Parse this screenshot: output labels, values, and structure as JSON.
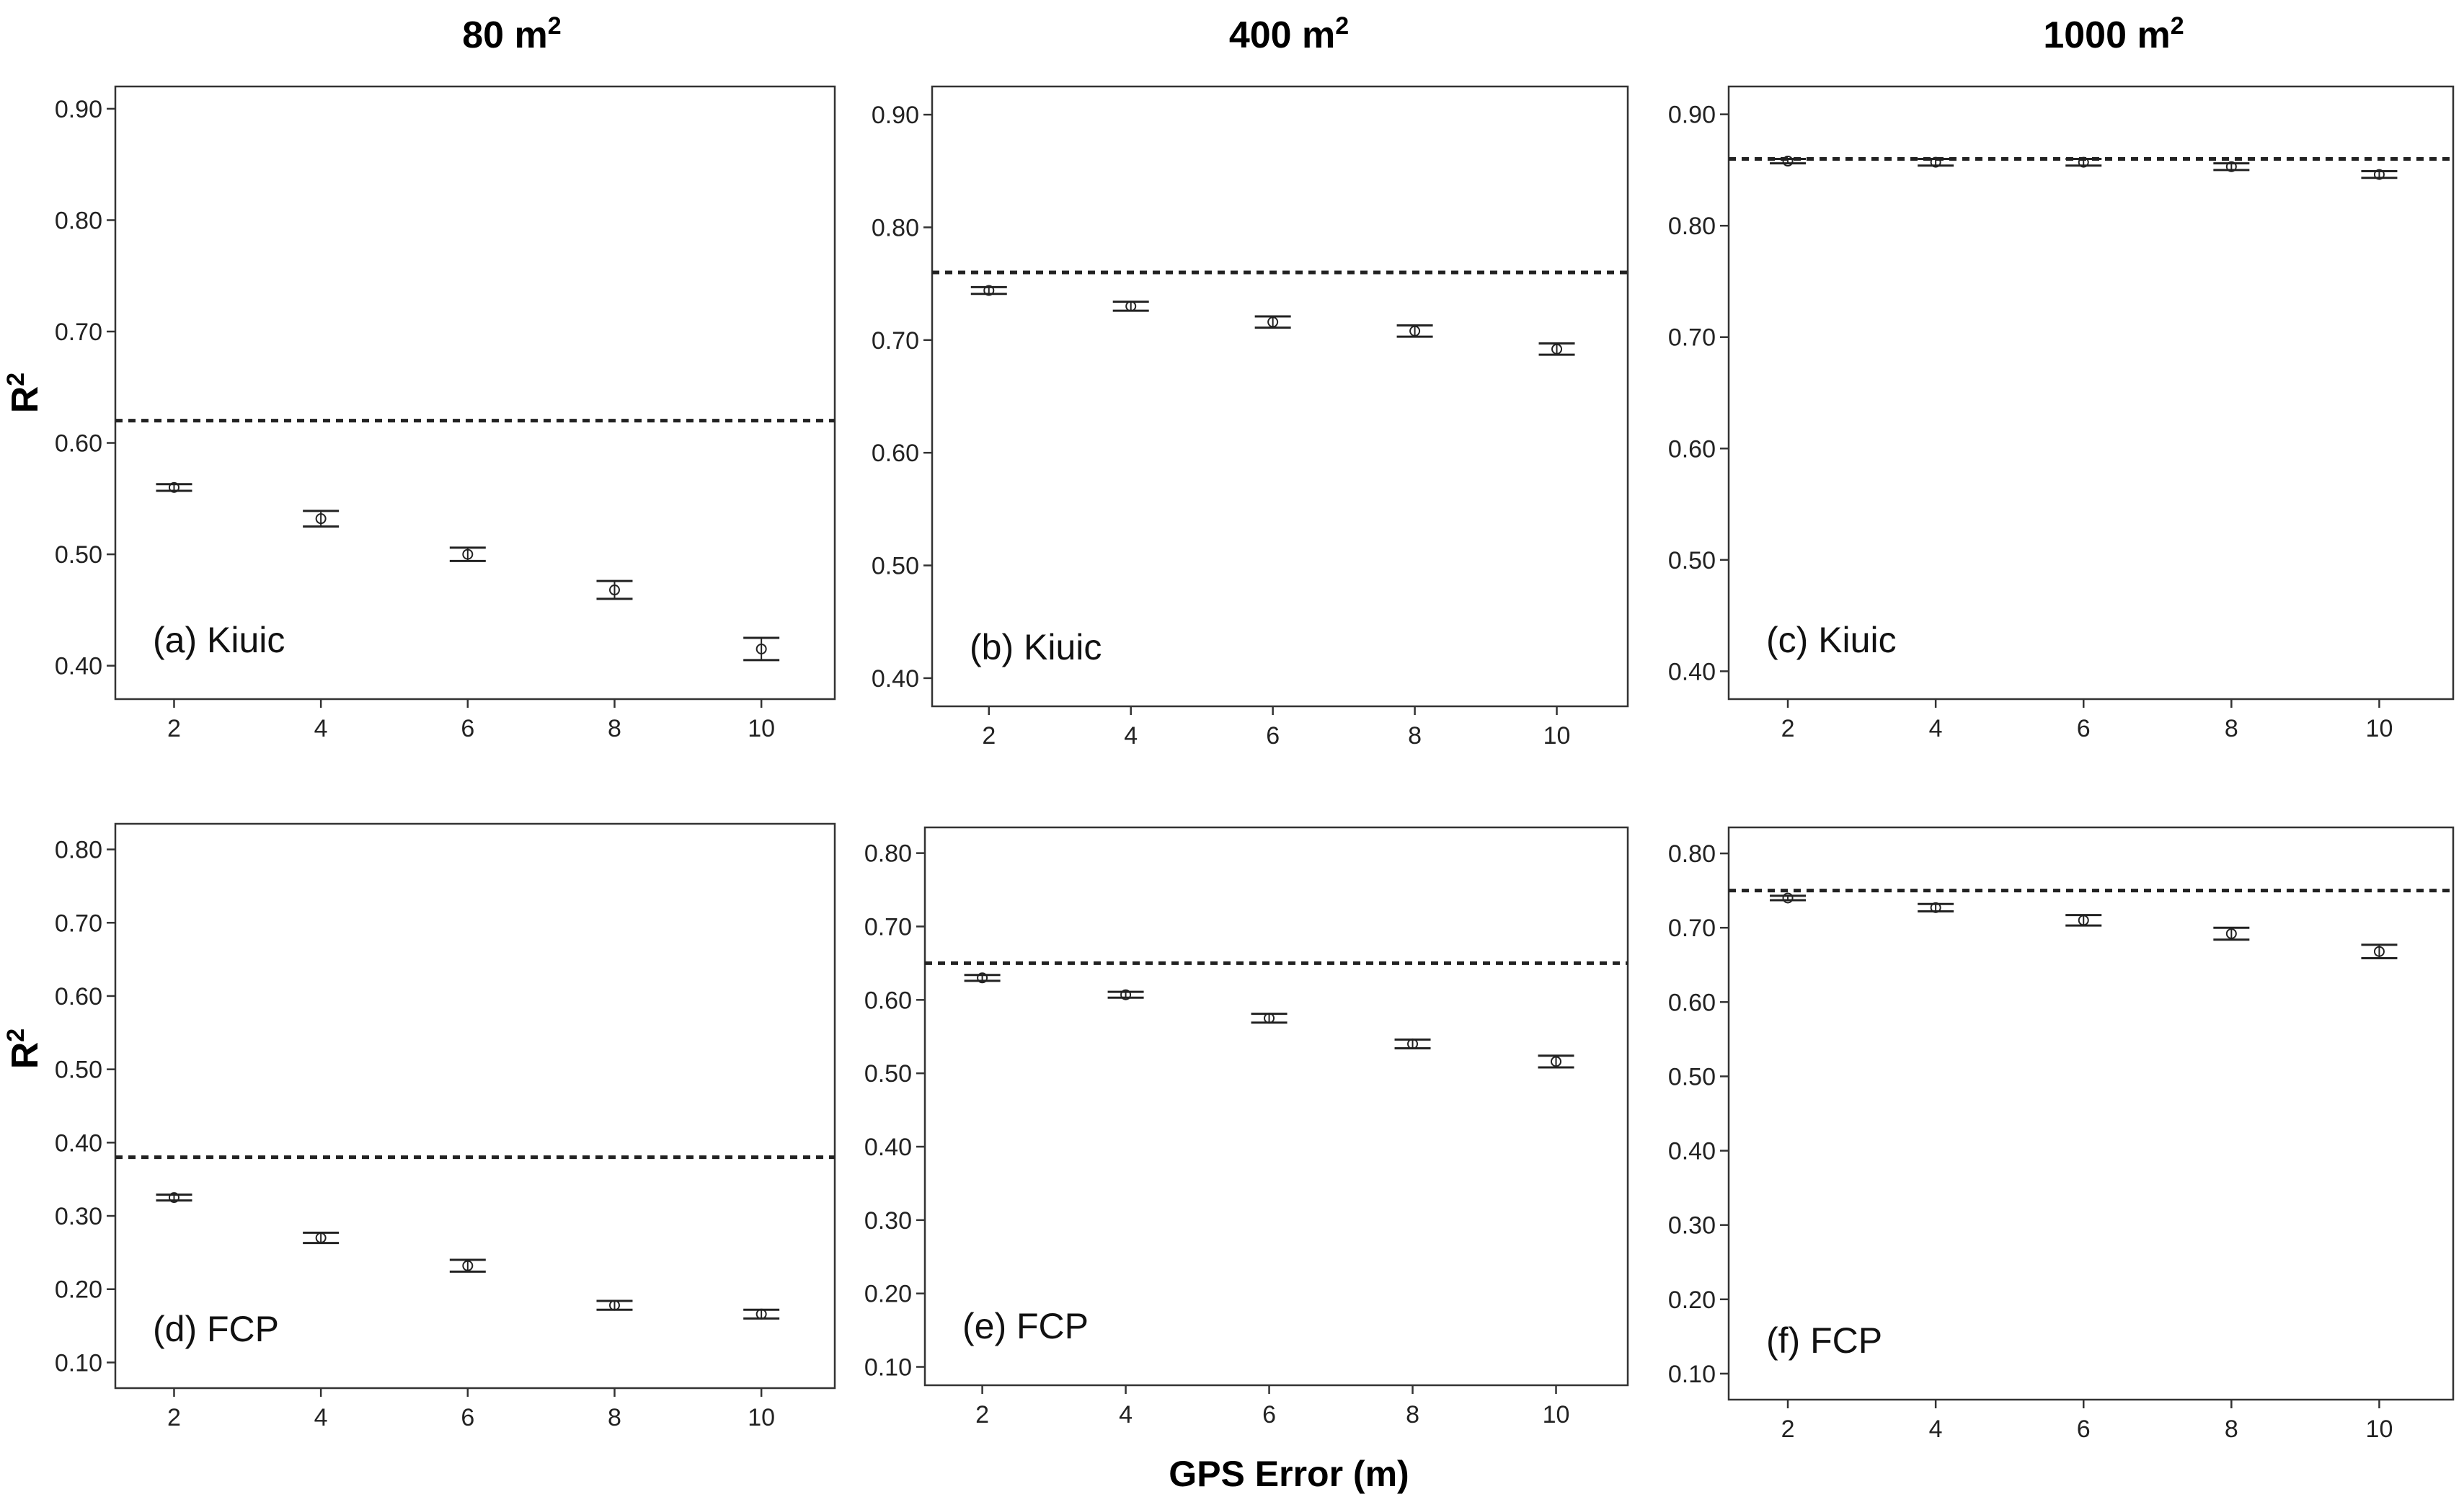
{
  "figure": {
    "column_titles": [
      {
        "base": "80 m",
        "sup": "2"
      },
      {
        "base": "400 m",
        "sup": "2"
      },
      {
        "base": "1000 m",
        "sup": "2"
      }
    ],
    "y_label": {
      "base": "R",
      "sup": "2"
    },
    "x_label": "GPS  Error (m)"
  },
  "chart_data": [
    {
      "type": "scatter",
      "label": "(a) Kiuic",
      "x": [
        2,
        4,
        6,
        8,
        10
      ],
      "values": [
        0.56,
        0.532,
        0.5,
        0.468,
        0.415
      ],
      "err": [
        0.003,
        0.007,
        0.006,
        0.008,
        0.01
      ],
      "baseline": 0.62,
      "ylim": [
        0.37,
        0.92
      ],
      "yticks": [
        0.4,
        0.5,
        0.6,
        0.7,
        0.8,
        0.9
      ],
      "xticks": [
        2,
        4,
        6,
        8,
        10
      ]
    },
    {
      "type": "scatter",
      "label": "(b) Kiuic",
      "x": [
        2,
        4,
        6,
        8,
        10
      ],
      "values": [
        0.744,
        0.73,
        0.716,
        0.708,
        0.692
      ],
      "err": [
        0.003,
        0.004,
        0.005,
        0.005,
        0.005
      ],
      "baseline": 0.76,
      "ylim": [
        0.375,
        0.925
      ],
      "yticks": [
        0.4,
        0.5,
        0.6,
        0.7,
        0.8,
        0.9
      ],
      "xticks": [
        2,
        4,
        6,
        8,
        10
      ]
    },
    {
      "type": "scatter",
      "label": "(c) Kiuic",
      "x": [
        2,
        4,
        6,
        8,
        10
      ],
      "values": [
        0.858,
        0.857,
        0.857,
        0.853,
        0.846
      ],
      "err": [
        0.002,
        0.003,
        0.003,
        0.003,
        0.003
      ],
      "baseline": 0.86,
      "ylim": [
        0.375,
        0.925
      ],
      "yticks": [
        0.4,
        0.5,
        0.6,
        0.7,
        0.8,
        0.9
      ],
      "xticks": [
        2,
        4,
        6,
        8,
        10
      ]
    },
    {
      "type": "scatter",
      "label": "(d) FCP",
      "x": [
        2,
        4,
        6,
        8,
        10
      ],
      "values": [
        0.325,
        0.27,
        0.232,
        0.178,
        0.166
      ],
      "err": [
        0.004,
        0.007,
        0.008,
        0.006,
        0.006
      ],
      "baseline": 0.38,
      "ylim": [
        0.065,
        0.835
      ],
      "yticks": [
        0.1,
        0.2,
        0.3,
        0.4,
        0.5,
        0.6,
        0.7,
        0.8
      ],
      "xticks": [
        2,
        4,
        6,
        8,
        10
      ]
    },
    {
      "type": "scatter",
      "label": "(e) FCP",
      "x": [
        2,
        4,
        6,
        8,
        10
      ],
      "values": [
        0.63,
        0.607,
        0.575,
        0.54,
        0.516
      ],
      "err": [
        0.004,
        0.004,
        0.006,
        0.006,
        0.008
      ],
      "baseline": 0.65,
      "ylim": [
        0.075,
        0.835
      ],
      "yticks": [
        0.1,
        0.2,
        0.3,
        0.4,
        0.5,
        0.6,
        0.7,
        0.8
      ],
      "xticks": [
        2,
        4,
        6,
        8,
        10
      ]
    },
    {
      "type": "scatter",
      "label": "(f) FCP",
      "x": [
        2,
        4,
        6,
        8,
        10
      ],
      "values": [
        0.74,
        0.727,
        0.71,
        0.692,
        0.668
      ],
      "err": [
        0.003,
        0.005,
        0.007,
        0.008,
        0.009
      ],
      "baseline": 0.75,
      "ylim": [
        0.065,
        0.835
      ],
      "yticks": [
        0.1,
        0.2,
        0.3,
        0.4,
        0.5,
        0.6,
        0.7,
        0.8
      ],
      "xticks": [
        2,
        4,
        6,
        8,
        10
      ]
    }
  ]
}
